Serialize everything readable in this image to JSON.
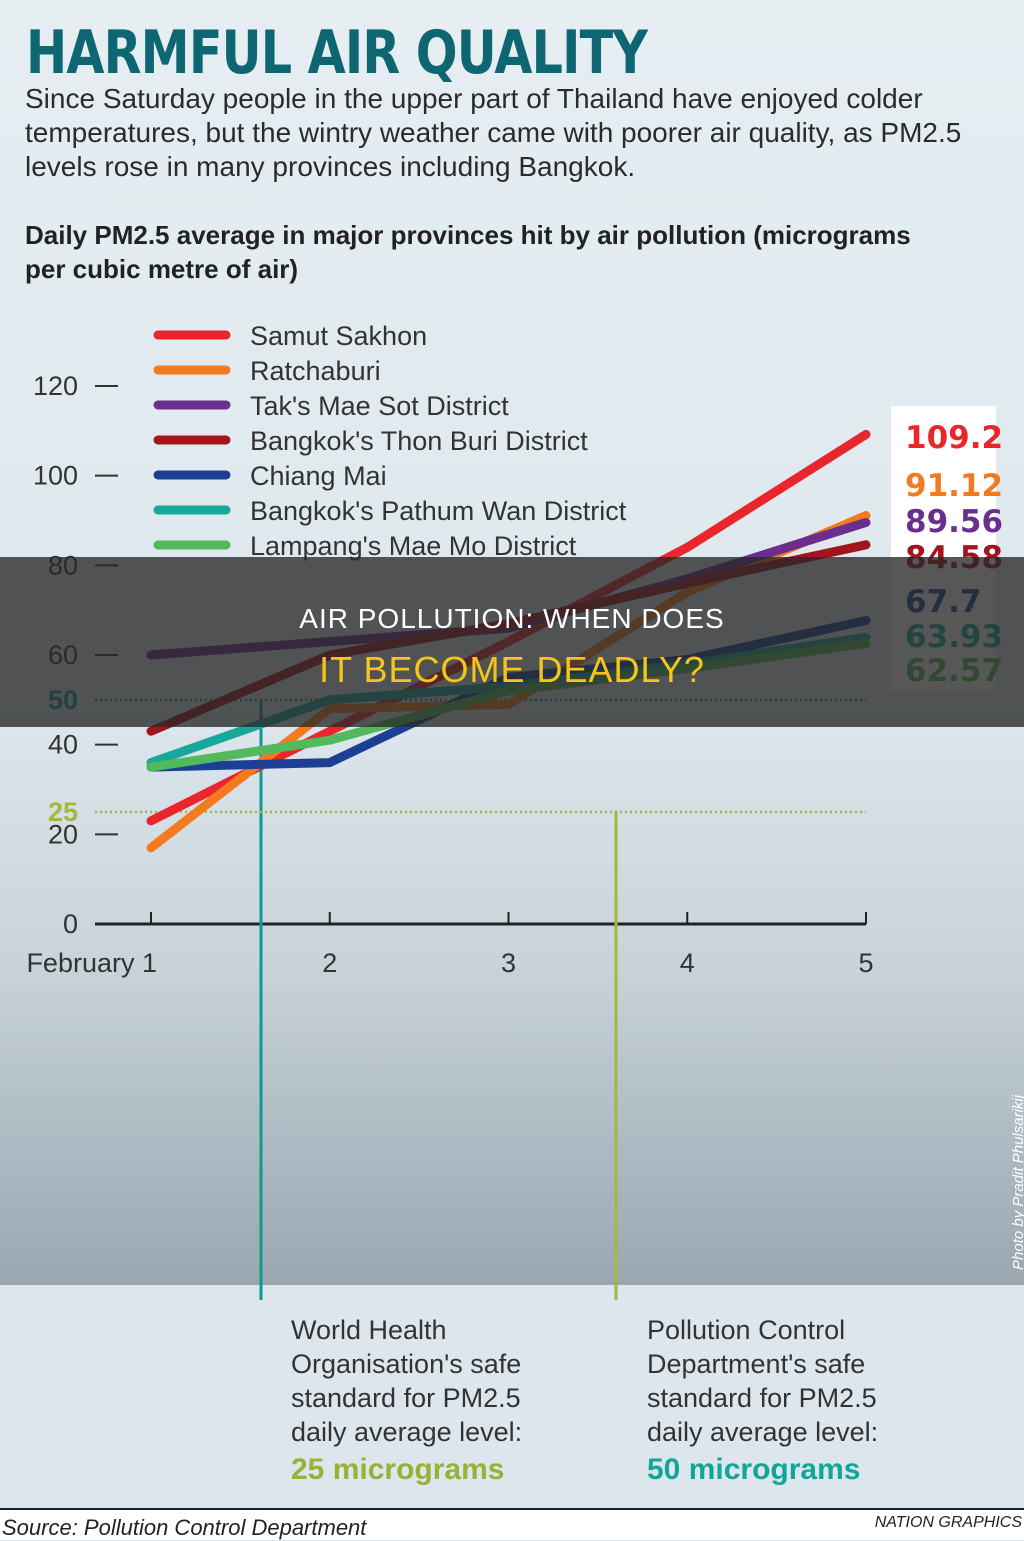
{
  "header": {
    "headline": "HARMFUL AIR QUALITY",
    "intro": "Since Saturday people in the upper part of Thailand have enjoyed colder temperatures, but the wintry weather came with poorer air quality, as PM2.5 levels rose in many provinces including Bangkok."
  },
  "chart_data": {
    "type": "line",
    "title": "Daily PM2.5 average in major provinces hit by air pollution (micrograms per cubic metre of air)",
    "x": [
      "February 1",
      "2",
      "3",
      "4",
      "5"
    ],
    "ylim": [
      0,
      120
    ],
    "yticks": [
      0,
      20,
      40,
      60,
      80,
      100,
      120
    ],
    "grid": false,
    "legend_position": "top-left",
    "series": [
      {
        "name": "Samut Sakhon",
        "color": "#e8262b",
        "values": [
          23,
          43,
          63,
          84,
          109.2
        ],
        "end_label": "109.2"
      },
      {
        "name": "Ratchaburi",
        "color": "#f47a20",
        "values": [
          17,
          48,
          49,
          74,
          91.12
        ],
        "end_label": "91.12"
      },
      {
        "name": "Tak's Mae Sot District",
        "color": "#6a2f8e",
        "values": [
          60,
          63,
          66,
          77,
          89.56
        ],
        "end_label": "89.56"
      },
      {
        "name": "Bangkok's Thon Buri District",
        "color": "#a3141c",
        "values": [
          43,
          60,
          67,
          76,
          84.58
        ],
        "end_label": "84.58"
      },
      {
        "name": "Chiang Mai",
        "color": "#1c3f95",
        "values": [
          35,
          36,
          55,
          59,
          67.7
        ],
        "end_label": "67.7"
      },
      {
        "name": "Bangkok's Pathum Wan District",
        "color": "#17a79b",
        "values": [
          36,
          50,
          53,
          58,
          63.93
        ],
        "end_label": "63.93"
      },
      {
        "name": "Lampang's Mae Mo District",
        "color": "#52b95c",
        "values": [
          35,
          41,
          52,
          57,
          62.57
        ],
        "end_label": "62.57"
      }
    ],
    "thresholds": [
      {
        "value": 50,
        "label": "50",
        "color": "#0e9b8f"
      },
      {
        "value": 25,
        "label": "25",
        "color": "#a6b83c"
      }
    ]
  },
  "callouts": [
    {
      "text": [
        "World Health",
        "Organisation's safe",
        "standard for PM2.5",
        "daily average level:"
      ],
      "value": "25 micrograms",
      "color": "#9bb037"
    },
    {
      "text": [
        "Pollution Control",
        "Department's safe",
        "standard for PM2.5",
        "daily average level:"
      ],
      "value": "50 micrograms",
      "color": "#10a69a"
    }
  ],
  "photo_credit": "Photo by Pradit Phulsarikij",
  "footer": {
    "source": "Source: Pollution Control Department",
    "credit": "NATION GRAPHICS"
  },
  "banner": {
    "line1": "AIR POLLUTION: WHEN DOES",
    "line2": "IT BECOME DEADLY?"
  }
}
